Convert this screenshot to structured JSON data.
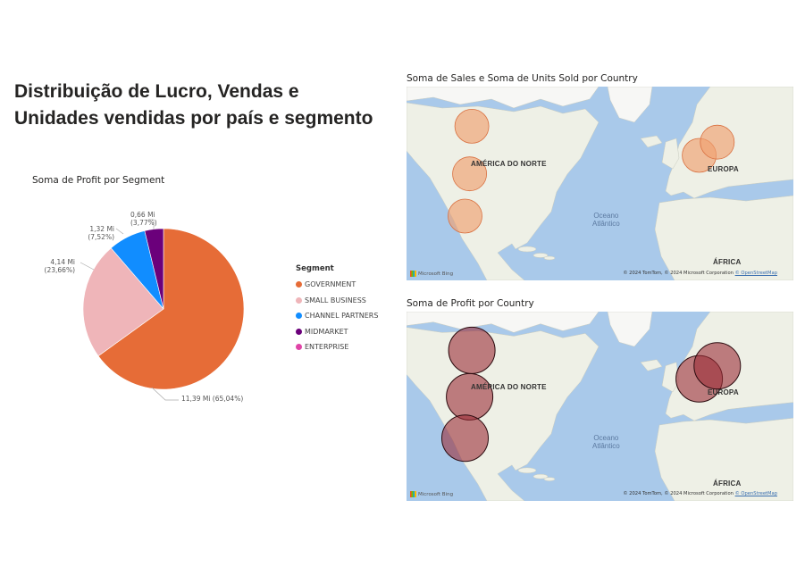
{
  "dashboard": {
    "title_line1": "Distribuição de Lucro, Vendas e",
    "title_line2": "Unidades vendidas por país e segmento"
  },
  "chart_data": [
    {
      "type": "pie",
      "title": "Soma de Profit por Segment",
      "legend_title": "Segment",
      "legend_position": "right",
      "slices": [
        {
          "label": "GOVERNMENT",
          "value": 11.39,
          "value_label": "11,39 Mi (65,04%)",
          "percent": 65.04,
          "color": "#e66c37"
        },
        {
          "label": "SMALL BUSINESS",
          "value": 4.14,
          "value_label": "4,14 Mi (23,66%)",
          "percent": 23.66,
          "color": "#efb5b9"
        },
        {
          "label": "CHANNEL PARTNERS",
          "value": 1.32,
          "value_label": "1,32 Mi (7,52%)",
          "percent": 7.52,
          "color": "#118dff"
        },
        {
          "label": "MIDMARKET",
          "value": 0.66,
          "value_label": "0,66 Mi (3,77%)",
          "percent": 3.77,
          "color": "#6b007b"
        },
        {
          "label": "ENTERPRISE",
          "value": 0,
          "value_label": "",
          "percent": 0,
          "color": "#e044a7"
        }
      ]
    },
    {
      "type": "map-bubble",
      "title": "Soma de Sales e Soma de Units Sold por Country",
      "bubble_color": "#f0a070",
      "points": [
        {
          "country": "Canada",
          "lon": -99,
          "lat": 57
        },
        {
          "country": "United States of America",
          "lon": -100,
          "lat": 39
        },
        {
          "country": "Mexico",
          "lon": -102,
          "lat": 23
        },
        {
          "country": "France",
          "lon": 2,
          "lat": 46
        },
        {
          "country": "Germany",
          "lon": 10,
          "lat": 51
        }
      ]
    },
    {
      "type": "map-bubble",
      "title": "Soma de Profit por Country",
      "bubble_color": "#9b2d37",
      "points": [
        {
          "country": "Canada",
          "lon": -99,
          "lat": 57
        },
        {
          "country": "United States of America",
          "lon": -100,
          "lat": 39
        },
        {
          "country": "Mexico",
          "lon": -102,
          "lat": 23
        },
        {
          "country": "France",
          "lon": 2,
          "lat": 46
        },
        {
          "country": "Germany",
          "lon": 10,
          "lat": 51
        }
      ]
    }
  ],
  "map_labels": {
    "north_america": "AMÉRICA DO NORTE",
    "europe": "EUROPA",
    "africa": "ÁFRICA",
    "ocean_line1": "Oceano",
    "ocean_line2": "Atlântico",
    "bing": "Microsoft Bing",
    "copyright_text": "© 2024 TomTom, © 2024 Microsoft Corporation",
    "osm": "© OpenStreetMap"
  },
  "colors": {
    "water": "#a9c9ea",
    "land": "#eef0e6",
    "ice": "#f7f7f5"
  }
}
